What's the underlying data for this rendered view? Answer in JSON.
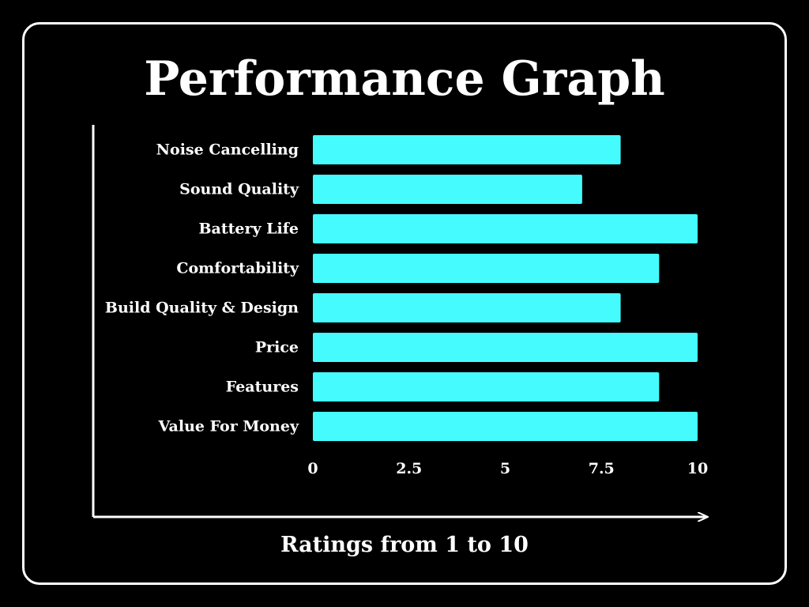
{
  "chart_data": {
    "type": "bar",
    "orientation": "horizontal",
    "title": "Performance Graph",
    "xlabel": "Ratings from 1 to 10",
    "ylabel": "",
    "categories": [
      "Noise Cancelling",
      "Sound Quality",
      "Battery Life",
      "Comfortability",
      "Build Quality & Design",
      "Price",
      "Features",
      "Value For Money"
    ],
    "values": [
      8,
      7,
      10,
      9,
      8,
      10,
      9,
      10
    ],
    "xlim": [
      0,
      10
    ],
    "x_ticks": [
      "0",
      "2.5",
      "5",
      "7.5",
      "10"
    ],
    "x_tick_values": [
      0,
      2.5,
      5,
      7.5,
      10
    ],
    "grid": false,
    "legend": "none",
    "colors": {
      "background": "#000000",
      "bar": "#45fbfd",
      "text": "#ffffff",
      "axis": "#ffffff"
    }
  }
}
